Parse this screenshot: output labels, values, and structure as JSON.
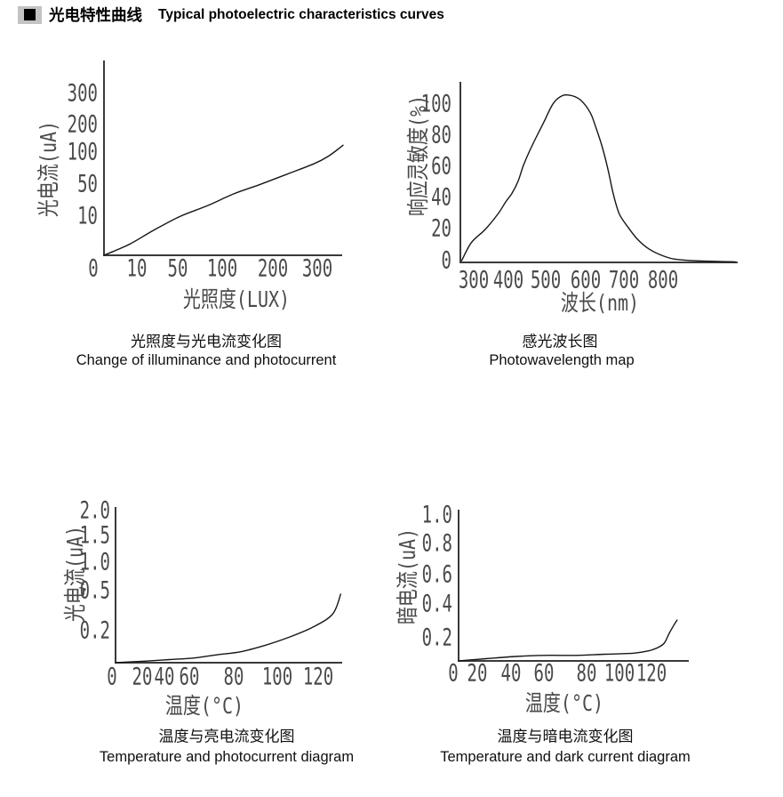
{
  "header": {
    "title_zh": "光电特性曲线",
    "title_en": "Typical photoelectric characteristics curves"
  },
  "colors": {
    "axis": "#3a3a3a",
    "curve": "#161616",
    "tick_text": "#4a4a4a",
    "caption_text": "#101010",
    "header_highlight": "#c3c3c3"
  },
  "chart_data": [
    {
      "type": "line",
      "title_zh": "光照度与光电流变化图",
      "title_en": "Change of illuminance and photocurrent",
      "xlabel": "光照度(LUX)",
      "ylabel": "光电流(uA)",
      "x_ticks": [
        0,
        10,
        50,
        100,
        200,
        300
      ],
      "y_ticks": [
        10,
        50,
        100,
        200,
        300
      ],
      "x_tick_labels": [
        "0",
        "10",
        "50",
        "100",
        "200",
        "300"
      ],
      "y_tick_labels": [
        "10",
        "50",
        "100",
        "200",
        "300"
      ],
      "xlim": [
        0,
        360
      ],
      "ylim": [
        0,
        350
      ],
      "grid": false,
      "legend": "none",
      "points": [
        [
          0,
          0
        ],
        [
          8,
          3
        ],
        [
          26,
          6.5
        ],
        [
          53,
          11
        ],
        [
          83,
          24
        ],
        [
          123,
          39
        ],
        [
          175,
          51
        ],
        [
          232,
          67
        ],
        [
          292,
          83
        ],
        [
          325,
          95
        ],
        [
          358,
          128
        ]
      ]
    },
    {
      "type": "line",
      "title_zh": "感光波长图",
      "title_en": "Photowavelength map",
      "xlabel": "波长(nm)",
      "ylabel": "响应灵敏度(%)",
      "x_ticks": [
        300,
        400,
        500,
        600,
        700,
        800
      ],
      "y_ticks": [
        0,
        20,
        40,
        60,
        80,
        100
      ],
      "x_tick_labels": [
        "300",
        "400",
        "500",
        "600",
        "700",
        "800"
      ],
      "y_tick_labels": [
        "0",
        "20",
        "40",
        "60",
        "80",
        "100"
      ],
      "xlim": [
        265,
        990
      ],
      "ylim": [
        0,
        110
      ],
      "grid": false,
      "legend": "none",
      "points": [
        [
          265,
          1
        ],
        [
          293,
          12
        ],
        [
          333,
          20
        ],
        [
          370,
          30
        ],
        [
          393,
          38
        ],
        [
          409,
          43
        ],
        [
          426,
          51
        ],
        [
          440,
          61
        ],
        [
          456,
          70
        ],
        [
          472,
          78
        ],
        [
          495,
          89
        ],
        [
          519,
          101
        ],
        [
          542,
          106
        ],
        [
          565,
          106
        ],
        [
          588,
          103
        ],
        [
          612,
          95
        ],
        [
          626,
          86
        ],
        [
          642,
          74
        ],
        [
          658,
          59
        ],
        [
          672,
          43
        ],
        [
          688,
          30
        ],
        [
          712,
          21
        ],
        [
          735,
          14
        ],
        [
          765,
          8
        ],
        [
          800,
          4
        ],
        [
          830,
          2
        ],
        [
          880,
          1
        ],
        [
          985,
          0.3
        ]
      ]
    },
    {
      "type": "line",
      "title_zh": "温度与亮电流变化图",
      "title_en": "Temperature and photocurrent diagram",
      "xlabel": "温度(°C)",
      "ylabel": "光电流(uA)",
      "x_ticks": [
        0,
        20,
        40,
        60,
        80,
        100,
        120
      ],
      "y_ticks": [
        0.2,
        0.5,
        1.0,
        1.5,
        2.0
      ],
      "x_tick_labels": [
        "0",
        "20",
        "40",
        "60",
        "80",
        "100",
        "120"
      ],
      "y_tick_labels": [
        "0.2",
        "0.5",
        "1.0",
        "1.5",
        "2.0"
      ],
      "xlim": [
        0,
        135
      ],
      "ylim": [
        0,
        2.0
      ],
      "grid": false,
      "legend": "none",
      "points": [
        [
          0,
          0
        ],
        [
          22,
          0.01
        ],
        [
          44,
          0.02
        ],
        [
          62,
          0.03
        ],
        [
          72,
          0.05
        ],
        [
          83,
          0.07
        ],
        [
          94,
          0.11
        ],
        [
          105,
          0.16
        ],
        [
          117,
          0.23
        ],
        [
          127,
          0.33
        ],
        [
          131,
          0.48
        ]
      ]
    },
    {
      "type": "line",
      "title_zh": "温度与暗电流变化图",
      "title_en": "Temperature and dark current diagram",
      "xlabel": "温度(°C)",
      "ylabel": "暗电流(uA)",
      "x_ticks": [
        0,
        20,
        40,
        60,
        80,
        100,
        120
      ],
      "y_ticks": [
        0.2,
        0.4,
        0.6,
        0.8,
        1.0
      ],
      "x_tick_labels": [
        "0",
        "20",
        "40",
        "60",
        "80",
        "100",
        "120"
      ],
      "y_tick_labels": [
        "0.2",
        "0.4",
        "0.6",
        "0.8",
        "1.0"
      ],
      "xlim": [
        0,
        136
      ],
      "ylim": [
        0,
        1.0
      ],
      "grid": false,
      "legend": "none",
      "points": [
        [
          0,
          0
        ],
        [
          25,
          0.02
        ],
        [
          43,
          0.04
        ],
        [
          60,
          0.05
        ],
        [
          75,
          0.05
        ],
        [
          91,
          0.06
        ],
        [
          109,
          0.07
        ],
        [
          118,
          0.09
        ],
        [
          124,
          0.12
        ],
        [
          128,
          0.16
        ],
        [
          131,
          0.23
        ],
        [
          134,
          0.28
        ],
        [
          136,
          0.31
        ]
      ]
    }
  ]
}
